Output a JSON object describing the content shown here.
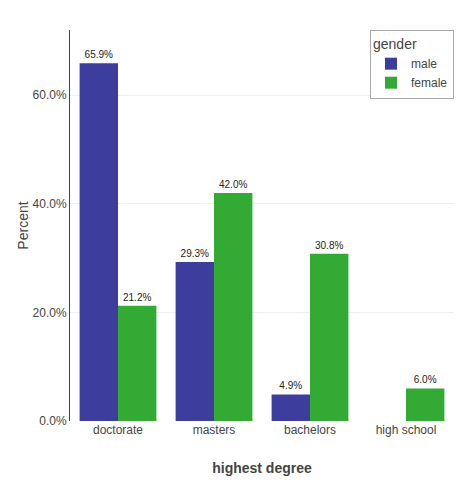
{
  "chart_data": {
    "type": "bar",
    "categories": [
      "doctorate",
      "masters",
      "bachelors",
      "high school"
    ],
    "series": [
      {
        "name": "male",
        "color": "#3d3d9e",
        "values": [
          65.9,
          29.3,
          4.9,
          0.0
        ],
        "value_labels": [
          "65.9%",
          "29.3%",
          "4.9%",
          null
        ]
      },
      {
        "name": "female",
        "color": "#33aa33",
        "values": [
          21.2,
          42.0,
          30.8,
          6.0
        ],
        "value_labels": [
          "21.2%",
          "42.0%",
          "30.8%",
          "6.0%"
        ]
      }
    ],
    "xlabel": "highest degree",
    "ylabel": "Percent",
    "legend_title": "gender",
    "ylim": [
      0,
      72
    ],
    "yticks": [
      {
        "value": 0.0,
        "label": "0.0%"
      },
      {
        "value": 20.0,
        "label": "20.0%"
      },
      {
        "value": 40.0,
        "label": "40.0%"
      },
      {
        "value": 60.0,
        "label": "60.0%"
      }
    ],
    "grid": true,
    "legend": "upper right",
    "data_labels": true
  }
}
